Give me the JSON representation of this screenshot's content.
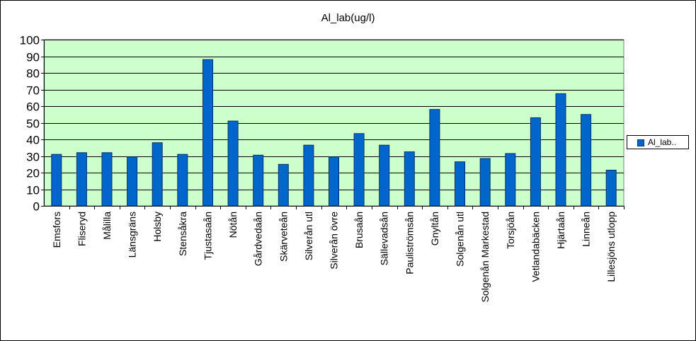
{
  "chart_data": {
    "type": "bar",
    "title": "Al_lab(ug/l)",
    "xlabel": "",
    "ylabel": "",
    "ylim": [
      0,
      100
    ],
    "yticks": [
      "0",
      "10",
      "20",
      "30",
      "40",
      "50",
      "60",
      "70",
      "80",
      "90",
      "100"
    ],
    "grid": true,
    "legend_position": "right",
    "categories": [
      "Emsfors",
      "Fliseryd",
      "Målilla",
      "Länsgräns",
      "Holsby",
      "Stensåkra",
      "Tjustasaån",
      "Nötån",
      "Gårdvedaån",
      "Skärveteån",
      "Silverån utl",
      "Silverån övre",
      "Brusaån",
      "Sällevadsån",
      "Pauliströmsån",
      "Gnyltån",
      "Solgenån utl",
      "Solgenån Markestad",
      "Torsjöån",
      "Vetlandabäcken",
      "Hjärtaån",
      "Linneån",
      "Lillesjöns utlopp"
    ],
    "series": [
      {
        "name": "Al_lab..",
        "values": [
          31,
          32,
          32,
          29.5,
          38,
          31,
          88,
          51,
          30.5,
          25,
          36.5,
          29.5,
          43.5,
          36.5,
          32.5,
          58,
          26.5,
          28.5,
          31.5,
          53,
          67.5,
          55,
          21.5
        ]
      }
    ],
    "colors": {
      "bar_fill": "#0066CC",
      "bar_stroke": "#003366",
      "plot_background": "#CCFFCC",
      "gridline": "#000000"
    }
  }
}
